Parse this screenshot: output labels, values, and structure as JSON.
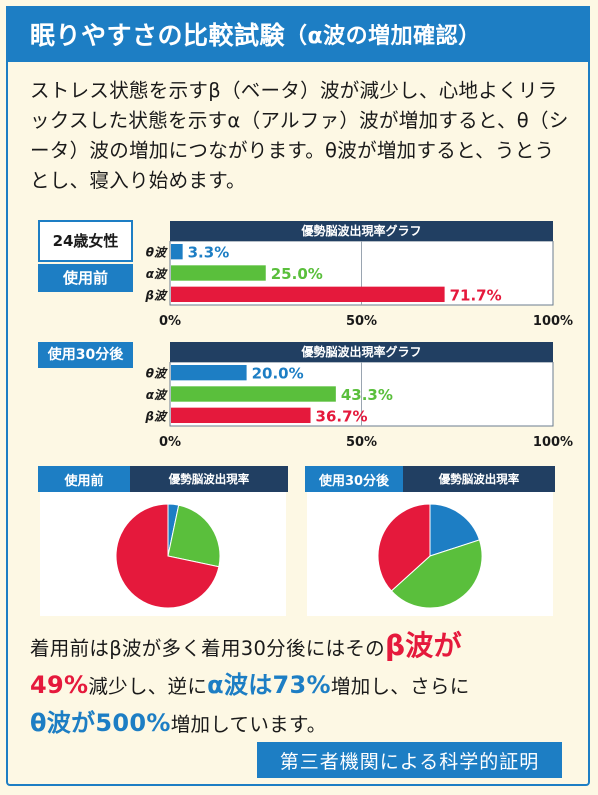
{
  "header": {
    "title": "眠りやすさの比較試験",
    "subtitle": "（α波の増加確認）"
  },
  "intro": {
    "text": "ストレス状態を示すβ（ベータ）波が減少し、心地よくリラックスした状態を示すα（アルファ）波が増加すると、θ（シータ）波の増加につながります。θ波が増加すると、うとうとし、寝入り始めます。"
  },
  "subject_label": "24歳女性",
  "colors": {
    "theta": "#1d7ec4",
    "alpha": "#5abf3c",
    "beta": "#e5193c",
    "brand": "#1d7ec4",
    "title_bar": "#213f62"
  },
  "chart_data": [
    {
      "type": "bar",
      "orientation": "horizontal",
      "title": "優勢脳波出現率グラフ",
      "condition": "使用前",
      "categories": [
        "θ波",
        "α波",
        "β波"
      ],
      "values": [
        3.3,
        25.0,
        71.7
      ],
      "value_labels": [
        "3.3%",
        "25.0%",
        "71.7%"
      ],
      "xlim": [
        0,
        100
      ],
      "x_ticks": [
        "0%",
        "50%",
        "100%"
      ],
      "grid": true
    },
    {
      "type": "bar",
      "orientation": "horizontal",
      "title": "優勢脳波出現率グラフ",
      "condition": "使用30分後",
      "categories": [
        "θ波",
        "α波",
        "β波"
      ],
      "values": [
        20.0,
        43.3,
        36.7
      ],
      "value_labels": [
        "20.0%",
        "43.3%",
        "36.7%"
      ],
      "xlim": [
        0,
        100
      ],
      "x_ticks": [
        "0%",
        "50%",
        "100%"
      ],
      "grid": true
    },
    {
      "type": "pie",
      "title": "優勢脳波出現率",
      "condition": "使用前",
      "categories": [
        "θ波",
        "α波",
        "β波"
      ],
      "values": [
        3.3,
        25.0,
        71.7
      ]
    },
    {
      "type": "pie",
      "title": "優勢脳波出現率",
      "condition": "使用30分後",
      "categories": [
        "θ波",
        "α波",
        "β波"
      ],
      "values": [
        20.0,
        43.3,
        36.7
      ]
    }
  ],
  "summary": {
    "p1": "着用前は",
    "p2": "β",
    "p3": "波が多く着用30分後にはその",
    "p4": "β波が",
    "p5": "49%",
    "p6": "減少し、逆に",
    "p7": "α波は73%",
    "p8": "増加し、さらに",
    "p9": "θ波が500%",
    "p10": "増加しています。"
  },
  "footer": "第三者機関による科学的証明"
}
